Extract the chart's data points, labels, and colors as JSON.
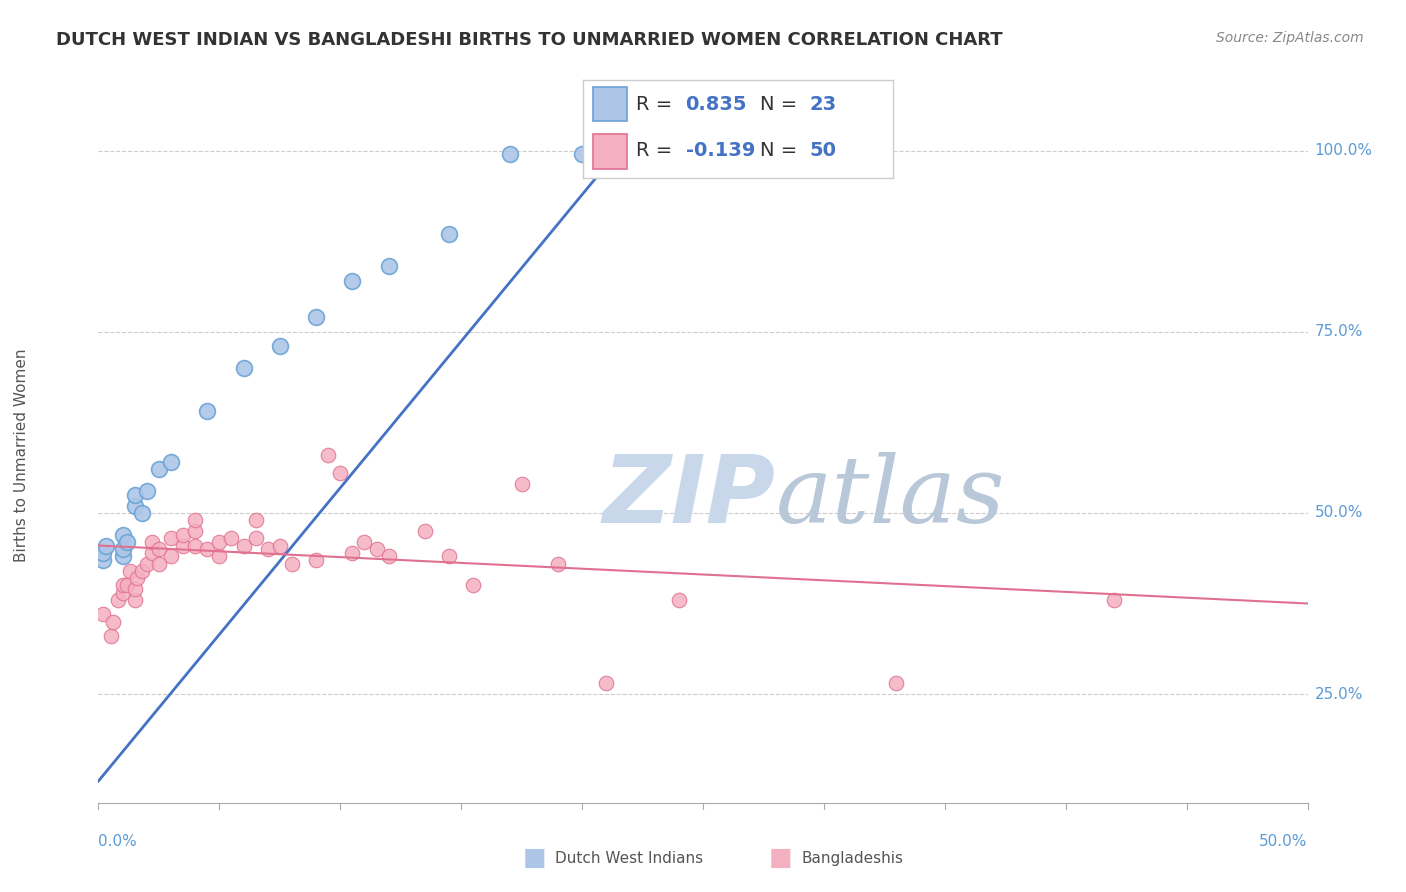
{
  "title": "DUTCH WEST INDIAN VS BANGLADESHI BIRTHS TO UNMARRIED WOMEN CORRELATION CHART",
  "source": "Source: ZipAtlas.com",
  "ylabel": "Births to Unmarried Women",
  "xmin": 0.0,
  "xmax": 0.5,
  "ymin": 0.1,
  "ymax": 1.06,
  "ytick_vals": [
    0.25,
    0.5,
    0.75,
    1.0
  ],
  "ytick_labels": [
    "25.0%",
    "50.0%",
    "75.0%",
    "100.0%"
  ],
  "legend_text": [
    [
      "R =  0.835",
      "N = 23"
    ],
    [
      "R = -0.139",
      "N = 50"
    ]
  ],
  "blue_color": "#adc6e8",
  "blue_edge_color": "#6aa3d5",
  "pink_color": "#f4afc0",
  "pink_edge_color": "#e07090",
  "blue_line_color": "#4472c4",
  "pink_line_color": "#e07090",
  "watermark_color": "#c8d8ea",
  "blue_dots": [
    [
      0.002,
      0.435
    ],
    [
      0.002,
      0.445
    ],
    [
      0.003,
      0.455
    ],
    [
      0.01,
      0.44
    ],
    [
      0.01,
      0.45
    ],
    [
      0.01,
      0.47
    ],
    [
      0.012,
      0.46
    ],
    [
      0.015,
      0.51
    ],
    [
      0.015,
      0.525
    ],
    [
      0.018,
      0.5
    ],
    [
      0.02,
      0.53
    ],
    [
      0.025,
      0.56
    ],
    [
      0.03,
      0.57
    ],
    [
      0.045,
      0.64
    ],
    [
      0.06,
      0.7
    ],
    [
      0.075,
      0.73
    ],
    [
      0.09,
      0.77
    ],
    [
      0.105,
      0.82
    ],
    [
      0.12,
      0.84
    ],
    [
      0.145,
      0.885
    ],
    [
      0.17,
      0.995
    ],
    [
      0.2,
      0.995
    ],
    [
      0.215,
      0.995
    ]
  ],
  "pink_dots": [
    [
      0.002,
      0.36
    ],
    [
      0.005,
      0.33
    ],
    [
      0.006,
      0.35
    ],
    [
      0.008,
      0.38
    ],
    [
      0.01,
      0.39
    ],
    [
      0.01,
      0.4
    ],
    [
      0.012,
      0.4
    ],
    [
      0.013,
      0.42
    ],
    [
      0.015,
      0.38
    ],
    [
      0.015,
      0.395
    ],
    [
      0.016,
      0.41
    ],
    [
      0.018,
      0.42
    ],
    [
      0.02,
      0.43
    ],
    [
      0.022,
      0.445
    ],
    [
      0.022,
      0.46
    ],
    [
      0.025,
      0.43
    ],
    [
      0.025,
      0.45
    ],
    [
      0.03,
      0.44
    ],
    [
      0.03,
      0.465
    ],
    [
      0.035,
      0.455
    ],
    [
      0.035,
      0.47
    ],
    [
      0.04,
      0.455
    ],
    [
      0.04,
      0.475
    ],
    [
      0.04,
      0.49
    ],
    [
      0.045,
      0.45
    ],
    [
      0.05,
      0.44
    ],
    [
      0.05,
      0.46
    ],
    [
      0.055,
      0.465
    ],
    [
      0.06,
      0.455
    ],
    [
      0.065,
      0.465
    ],
    [
      0.065,
      0.49
    ],
    [
      0.07,
      0.45
    ],
    [
      0.075,
      0.455
    ],
    [
      0.08,
      0.43
    ],
    [
      0.09,
      0.435
    ],
    [
      0.095,
      0.58
    ],
    [
      0.1,
      0.555
    ],
    [
      0.105,
      0.445
    ],
    [
      0.11,
      0.46
    ],
    [
      0.115,
      0.45
    ],
    [
      0.12,
      0.44
    ],
    [
      0.135,
      0.475
    ],
    [
      0.145,
      0.44
    ],
    [
      0.155,
      0.4
    ],
    [
      0.175,
      0.54
    ],
    [
      0.19,
      0.43
    ],
    [
      0.21,
      0.265
    ],
    [
      0.24,
      0.38
    ],
    [
      0.33,
      0.265
    ],
    [
      0.42,
      0.38
    ]
  ],
  "blue_trend_x": [
    0.0,
    0.22
  ],
  "blue_trend_y": [
    0.13,
    1.02
  ],
  "pink_trend_x": [
    0.0,
    0.5
  ],
  "pink_trend_y": [
    0.455,
    0.375
  ]
}
